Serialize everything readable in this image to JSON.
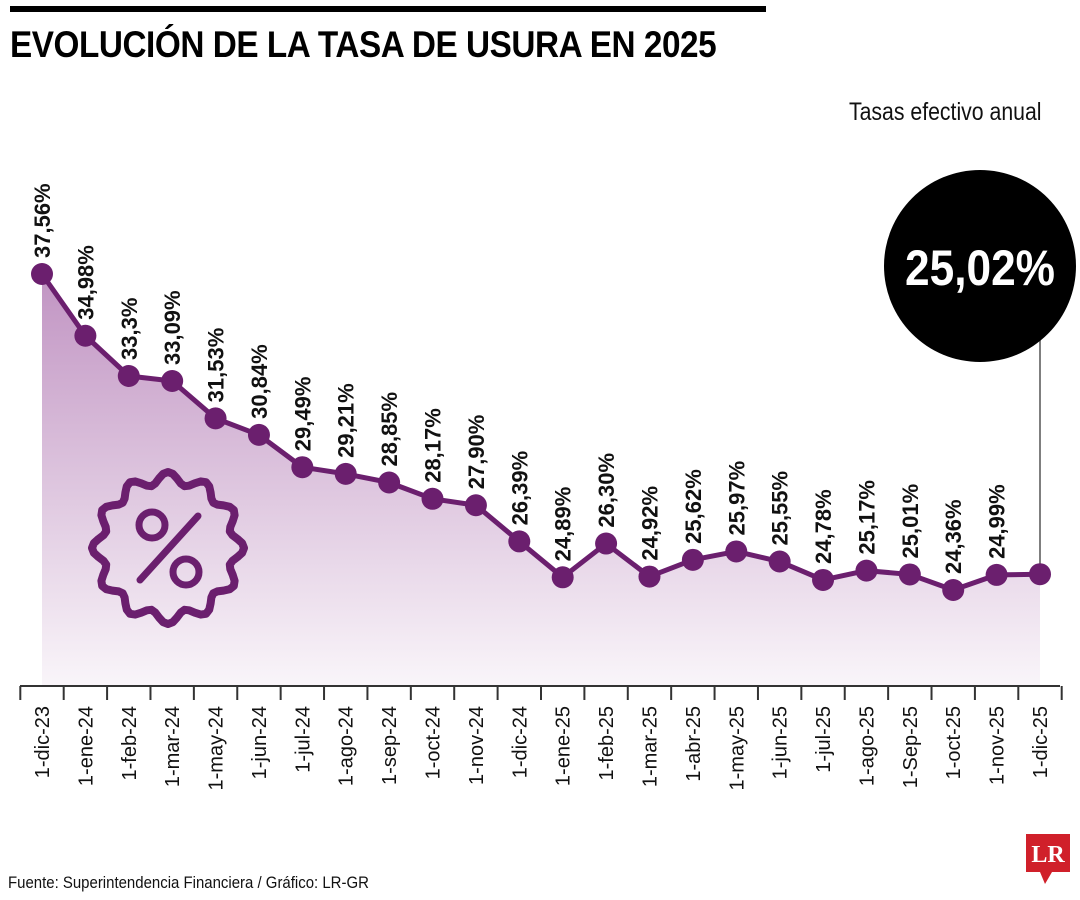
{
  "header": {
    "title": "EVOLUCIÓN DE LA TASA DE USURA EN 2025",
    "subtitle": "Tasas efectivo anual"
  },
  "highlight": {
    "value_label": "25,02%"
  },
  "footer": {
    "source": "Fuente: Superintendencia Financiera / Gráfico: LR-GR"
  },
  "brand": {
    "logo_text": "LR",
    "logo_color": "#d0202a"
  },
  "colors": {
    "line": "#6b1f6e",
    "fill": "#8e3c91",
    "badge": "#000000",
    "axis": "#333333"
  },
  "icon": {
    "name": "percent-badge-icon"
  },
  "chart_data": {
    "type": "line",
    "title": "EVOLUCIÓN DE LA TASA DE USURA EN 2025",
    "subtitle": "Tasas efectivo anual",
    "xlabel": "",
    "ylabel": "",
    "ylim": [
      18,
      40
    ],
    "grid": false,
    "categories": [
      "1-dic-23",
      "1-ene-24",
      "1-feb-24",
      "1-mar-24",
      "1-may-24",
      "1-jun-24",
      "1-jul-24",
      "1-ago-24",
      "1-sep-24",
      "1-oct-24",
      "1-nov-24",
      "1-dic-24",
      "1-ene-25",
      "1-feb-25",
      "1-mar-25",
      "1-abr-25",
      "1-may-25",
      "1-jun-25",
      "1-jul-25",
      "1-ago-25",
      "1-Sep-25",
      "1-oct-25",
      "1-nov-25",
      "1-dic-25"
    ],
    "values": [
      37.56,
      34.98,
      33.3,
      33.09,
      31.53,
      30.84,
      29.49,
      29.21,
      28.85,
      28.17,
      27.9,
      26.39,
      24.89,
      26.3,
      24.92,
      25.62,
      25.97,
      25.55,
      24.78,
      25.17,
      25.01,
      24.36,
      24.99,
      25.02
    ],
    "value_labels": [
      "37,56%",
      "34,98%",
      "33,3%",
      "33,09%",
      "31,53%",
      "30,84%",
      "29,49%",
      "29,21%",
      "28,85%",
      "28,17%",
      "27,90%",
      "26,39%",
      "24,89%",
      "26,30%",
      "24,92%",
      "25,62%",
      "25,97%",
      "25,55%",
      "24,78%",
      "25,17%",
      "25,01%",
      "24,36%",
      "24,99%",
      ""
    ]
  }
}
